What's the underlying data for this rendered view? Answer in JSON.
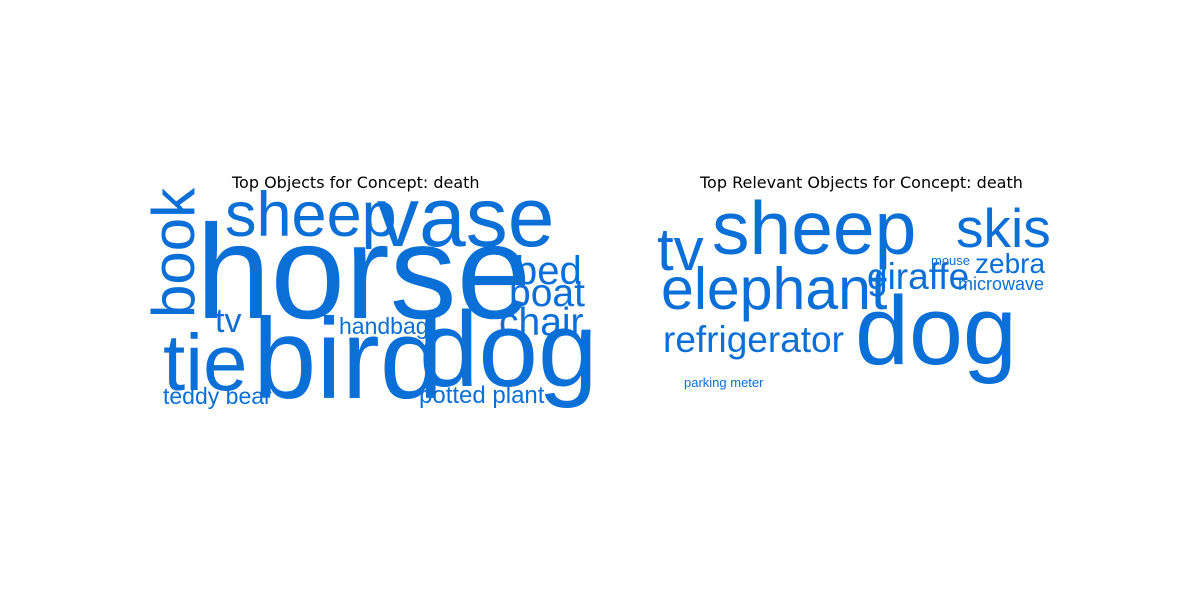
{
  "chart_data": [
    {
      "type": "wordcloud",
      "title": "Top Objects for Concept: death",
      "color": "#0a6fd6",
      "words": [
        {
          "text": "horse",
          "weight": 1.0
        },
        {
          "text": "bird",
          "weight": 0.85
        },
        {
          "text": "dog",
          "weight": 0.8
        },
        {
          "text": "vase",
          "weight": 0.63
        },
        {
          "text": "tie",
          "weight": 0.6
        },
        {
          "text": "sheep",
          "weight": 0.47
        },
        {
          "text": "book",
          "weight": 0.45
        },
        {
          "text": "bed",
          "weight": 0.3
        },
        {
          "text": "boat",
          "weight": 0.29
        },
        {
          "text": "chair",
          "weight": 0.29
        },
        {
          "text": "tv",
          "weight": 0.25
        },
        {
          "text": "teddy bear",
          "weight": 0.17
        },
        {
          "text": "potted plant",
          "weight": 0.18
        },
        {
          "text": "handbag",
          "weight": 0.17
        }
      ]
    },
    {
      "type": "wordcloud",
      "title": "Top Relevant Objects for Concept: death",
      "color": "#0a6fd6",
      "words": [
        {
          "text": "dog",
          "weight": 1.0
        },
        {
          "text": "sheep",
          "weight": 0.77
        },
        {
          "text": "tv",
          "weight": 0.62
        },
        {
          "text": "elephant",
          "weight": 0.61
        },
        {
          "text": "skis",
          "weight": 0.57
        },
        {
          "text": "refrigerator",
          "weight": 0.38
        },
        {
          "text": "giraffe",
          "weight": 0.38
        },
        {
          "text": "zebra",
          "weight": 0.29
        },
        {
          "text": "microwave",
          "weight": 0.19
        },
        {
          "text": "mouse",
          "weight": 0.13
        },
        {
          "text": "parking meter",
          "weight": 0.13
        }
      ]
    }
  ]
}
